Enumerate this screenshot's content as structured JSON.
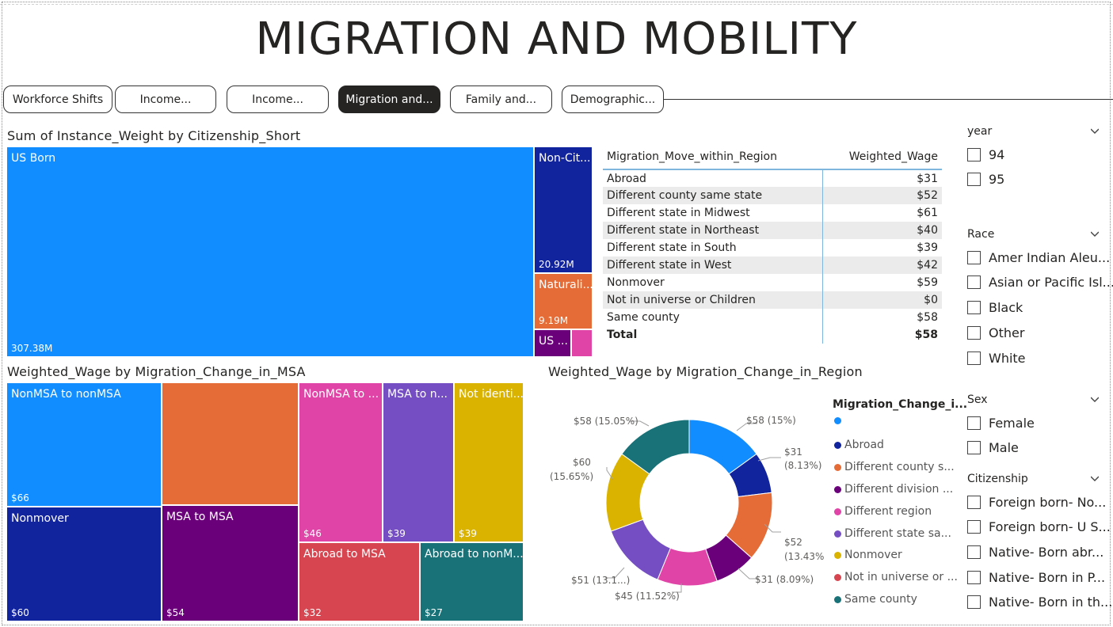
{
  "title": "MIGRATION AND MOBILITY",
  "nav": [
    "Workforce Shifts",
    "Income...",
    "Income...",
    "Migration and...",
    "Family and...",
    "Demographic..."
  ],
  "citizenship_treemap": {
    "title": "Sum of Instance_Weight by Citizenship_Short",
    "tiles": [
      {
        "label": "US Born",
        "value": "307.38M",
        "color": "#118DFF"
      },
      {
        "label": "Non-Cit...",
        "value": "20.92M",
        "color": "#12239E"
      },
      {
        "label": "Naturali...",
        "value": "9.19M",
        "color": "#E66C37"
      },
      {
        "label": "US ...",
        "value": "",
        "color": "#6B007B"
      },
      {
        "label": "",
        "value": "",
        "color": "#E044A7"
      }
    ]
  },
  "region_table": {
    "col1": "Migration_Move_within_Region",
    "col2": "Weighted_Wage",
    "rows": [
      {
        "name": "Abroad",
        "value": "$31"
      },
      {
        "name": "Different county same state",
        "value": "$52"
      },
      {
        "name": "Different state in Midwest",
        "value": "$61"
      },
      {
        "name": "Different state in Northeast",
        "value": "$40"
      },
      {
        "name": "Different state in South",
        "value": "$39"
      },
      {
        "name": "Different state in West",
        "value": "$42"
      },
      {
        "name": "Nonmover",
        "value": "$59"
      },
      {
        "name": "Not in universe or Children",
        "value": "$0"
      },
      {
        "name": "Same county",
        "value": "$58"
      }
    ],
    "total_label": "Total",
    "total_value": "$58"
  },
  "msa_treemap": {
    "title": "Weighted_Wage by Migration_Change_in_MSA",
    "tiles": [
      {
        "label": "NonMSA to nonMSA",
        "value": "$66",
        "color": "#118DFF"
      },
      {
        "label": "",
        "value": "",
        "color": "#E66C37"
      },
      {
        "label": "NonMSA to ...",
        "value": "$46",
        "color": "#E044A7"
      },
      {
        "label": "MSA to n...",
        "value": "$39",
        "color": "#744EC2"
      },
      {
        "label": "Not identi...",
        "value": "$39",
        "color": "#D9B300"
      },
      {
        "label": "Nonmover",
        "value": "$60",
        "color": "#12239E"
      },
      {
        "label": "MSA to MSA",
        "value": "$54",
        "color": "#6B007B"
      },
      {
        "label": "Abroad to MSA",
        "value": "$32",
        "color": "#D64550"
      },
      {
        "label": "Abroad to nonM...",
        "value": "$27",
        "color": "#197278"
      }
    ]
  },
  "donut": {
    "title": "Weighted_Wage by Migration_Change_in_Region",
    "legend_title": "Migration_Change_i...",
    "legend": [
      {
        "label": "",
        "color": "#118DFF"
      },
      {
        "label": "Abroad",
        "color": "#12239E"
      },
      {
        "label": "Different county s...",
        "color": "#E66C37"
      },
      {
        "label": "Different division ...",
        "color": "#6B007B"
      },
      {
        "label": "Different region",
        "color": "#E044A7"
      },
      {
        "label": "Different state sa...",
        "color": "#744EC2"
      },
      {
        "label": "Nonmover",
        "color": "#D9B300"
      },
      {
        "label": "Not in universe or ...",
        "color": "#D64550"
      },
      {
        "label": "Same county",
        "color": "#197278"
      }
    ],
    "labels": {
      "l0a": "$58 (15%)",
      "l1a": "$31",
      "l1b": "(8.13%)",
      "l2a": "$52",
      "l2b": "(13.43%)",
      "l3a": "$31 (8.09%)",
      "l4a": "$45 (11.52%)",
      "l5a": "$51 (13.1...)",
      "l6a": "$60",
      "l6b": "(15.65%)",
      "l7a": "$58 (15.05%)"
    }
  },
  "chart_data": [
    {
      "type": "treemap",
      "title": "Sum of Instance_Weight by Citizenship_Short",
      "categories": [
        "US Born",
        "Non-Cit...",
        "Naturali...",
        "US ...",
        ""
      ],
      "values_millions": [
        307.38,
        20.92,
        9.19,
        3.0,
        2.0
      ]
    },
    {
      "type": "pie",
      "title": "Weighted_Wage by Migration_Change_in_Region",
      "categories": [
        "",
        "Abroad",
        "Different county s...",
        "Different division ...",
        "Different region",
        "Different state sa...",
        "Nonmover",
        "Not in universe or ...",
        "Same county"
      ],
      "values": [
        58,
        31,
        52,
        31,
        45,
        51,
        60,
        0,
        58
      ],
      "percent": [
        15,
        8.13,
        13.43,
        8.09,
        11.52,
        13.1,
        15.65,
        0,
        15.05
      ]
    }
  ],
  "slicers": {
    "year": {
      "title": "year",
      "items": [
        "94",
        "95"
      ]
    },
    "race": {
      "title": "Race",
      "items": [
        "Amer Indian Aleu...",
        "Asian or Pacific Isl...",
        "Black",
        "Other",
        "White"
      ]
    },
    "sex": {
      "title": "Sex",
      "items": [
        "Female",
        "Male"
      ]
    },
    "citizenship": {
      "title": "Citizenship",
      "items": [
        "Foreign born- No...",
        "Foreign born- U S...",
        "Native- Born abr...",
        "Native- Born in P...",
        "Native- Born in th..."
      ]
    }
  }
}
